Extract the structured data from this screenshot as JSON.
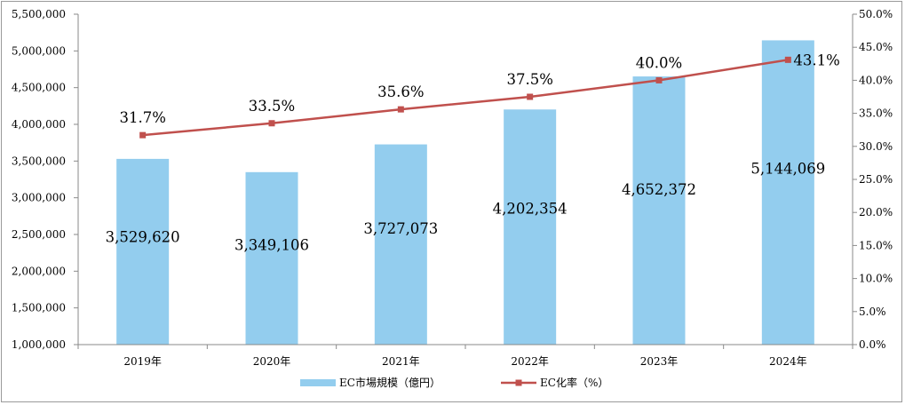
{
  "chart_data": {
    "type": "bar+line",
    "categories": [
      "2019年",
      "2020年",
      "2021年",
      "2022年",
      "2023年",
      "2024年"
    ],
    "series": [
      {
        "name": "EC市場規模（億円）",
        "type": "bar",
        "axis": "left",
        "color": "#93CDEE",
        "values": [
          3529620,
          3349106,
          3727073,
          4202354,
          4652372,
          5144069
        ],
        "labels": [
          "3,529,620",
          "3,349,106",
          "3,727,073",
          "4,202,354",
          "4,652,372",
          "5,144,069"
        ]
      },
      {
        "name": "EC化率（%）",
        "type": "line",
        "axis": "right",
        "color": "#C0504D",
        "values": [
          31.7,
          33.5,
          35.6,
          37.5,
          40.0,
          43.1
        ],
        "labels": [
          "31.7%",
          "33.5%",
          "35.6%",
          "37.5%",
          "40.0%",
          "43.1%"
        ]
      }
    ],
    "y_left": {
      "ylim": [
        1000000,
        5500000
      ],
      "ticks": [
        "1,000,000",
        "1,500,000",
        "2,000,000",
        "2,500,000",
        "3,000,000",
        "3,500,000",
        "4,000,000",
        "4,500,000",
        "5,000,000",
        "5,500,000"
      ]
    },
    "y_right": {
      "ylim": [
        0,
        50
      ],
      "ticks": [
        "0.0%",
        "5.0%",
        "10.0%",
        "15.0%",
        "20.0%",
        "25.0%",
        "30.0%",
        "35.0%",
        "40.0%",
        "45.0%",
        "50.0%"
      ]
    },
    "grid": false,
    "legend": "bottom",
    "colors": {
      "axis": "#8a8a8a",
      "frame": "#9a9a9a"
    }
  }
}
